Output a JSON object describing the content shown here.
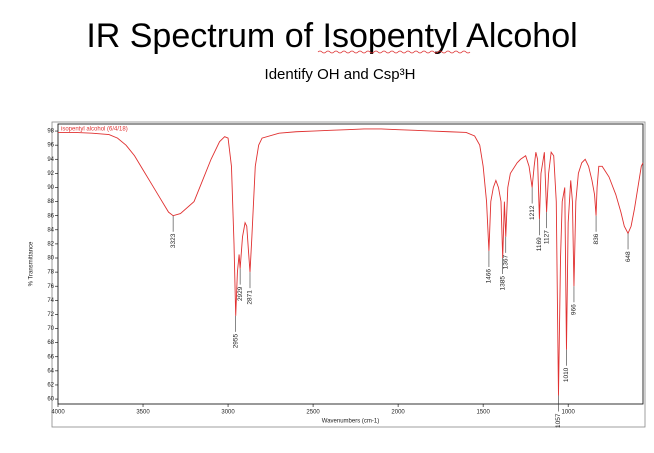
{
  "chart_data": {
    "type": "line",
    "title": "IR Spectrum of Isopentyl Alcohol",
    "subtitle": "Identify OH and Csp³H",
    "x_label": "Wavenumbers (cm-1)",
    "y_label": "% Transmittance",
    "xlim": [
      4000,
      560
    ],
    "ylim": [
      59.3,
      99
    ],
    "xticks": [
      4000,
      3500,
      3000,
      2500,
      2000,
      1500,
      1000
    ],
    "yticks": [
      60,
      62,
      64,
      66,
      68,
      70,
      72,
      74,
      76,
      78,
      80,
      82,
      84,
      86,
      88,
      90,
      92,
      94,
      96,
      98
    ],
    "x": [
      4000,
      3900,
      3800,
      3700,
      3650,
      3600,
      3550,
      3500,
      3450,
      3400,
      3350,
      3323,
      3280,
      3200,
      3150,
      3100,
      3050,
      3020,
      3000,
      2980,
      2965,
      2955,
      2945,
      2935,
      2929,
      2915,
      2900,
      2890,
      2880,
      2871,
      2860,
      2840,
      2820,
      2800,
      2700,
      2600,
      2500,
      2400,
      2300,
      2200,
      2100,
      2000,
      1900,
      1800,
      1700,
      1600,
      1550,
      1520,
      1500,
      1480,
      1466,
      1455,
      1440,
      1425,
      1410,
      1395,
      1385,
      1375,
      1367,
      1355,
      1340,
      1300,
      1280,
      1250,
      1230,
      1212,
      1200,
      1190,
      1180,
      1169,
      1160,
      1140,
      1127,
      1115,
      1100,
      1085,
      1070,
      1057,
      1045,
      1035,
      1020,
      1010,
      1000,
      985,
      975,
      966,
      955,
      940,
      920,
      900,
      880,
      860,
      845,
      836,
      830,
      820,
      800,
      760,
      720,
      690,
      670,
      648,
      630,
      610,
      590,
      570,
      560
    ],
    "series": [
      {
        "name": "isopentyl alcohol (6/4/18)",
        "color": "#e03030",
        "values": [
          97.8,
          97.8,
          97.7,
          97.5,
          97,
          96,
          94.5,
          92.5,
          90.5,
          88.5,
          86.5,
          86,
          86.3,
          88,
          91,
          94,
          96.5,
          97.2,
          97,
          93,
          82,
          71.8,
          78,
          80.5,
          78.5,
          83,
          85,
          84.5,
          81,
          78,
          83,
          93,
          96,
          97,
          97.7,
          97.9,
          98,
          98.1,
          98.2,
          98.3,
          98.3,
          98.2,
          98.1,
          98,
          97.9,
          97.8,
          97.3,
          96,
          93,
          88,
          81,
          88,
          90,
          91,
          90,
          88,
          80,
          88,
          83,
          90,
          92,
          93.5,
          94,
          94.5,
          93,
          90,
          93,
          95,
          94,
          85.5,
          92,
          95,
          86.5,
          92,
          95,
          94.5,
          88,
          60.5,
          80,
          88,
          90,
          67,
          85,
          91,
          88,
          76,
          88,
          92,
          93.5,
          94,
          93,
          91,
          89,
          86,
          90,
          93,
          93,
          91.5,
          89,
          86.5,
          84.5,
          83.5,
          84.5,
          87,
          90,
          93,
          93.5
        ]
      }
    ],
    "peaks": [
      {
        "x": 3323,
        "y": 86
      },
      {
        "x": 2955,
        "y": 71.8
      },
      {
        "x": 2929,
        "y": 78.5
      },
      {
        "x": 2871,
        "y": 78
      },
      {
        "x": 1466,
        "y": 81
      },
      {
        "x": 1385,
        "y": 80
      },
      {
        "x": 1367,
        "y": 83
      },
      {
        "x": 1212,
        "y": 90
      },
      {
        "x": 1169,
        "y": 85.5
      },
      {
        "x": 1127,
        "y": 86.5
      },
      {
        "x": 1057,
        "y": 60.5
      },
      {
        "x": 1010,
        "y": 67
      },
      {
        "x": 966,
        "y": 76
      },
      {
        "x": 836,
        "y": 86
      },
      {
        "x": 648,
        "y": 83.5
      }
    ],
    "grid": false
  }
}
